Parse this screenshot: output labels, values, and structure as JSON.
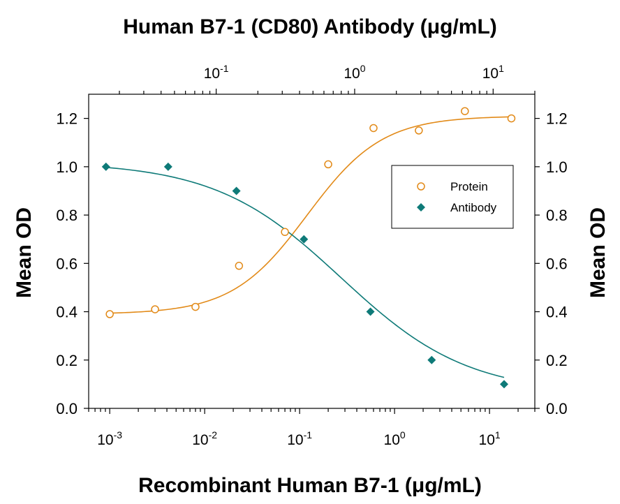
{
  "chart_data": {
    "type": "scatter",
    "title_top": "Human B7-1 (CD80) Antibody (μg/mL)",
    "xlabel_bottom": "Recombinant Human B7-1 (μg/mL)",
    "ylabel_left": "Mean OD",
    "ylabel_right": "Mean OD",
    "x_bottom_scale": "log",
    "x_bottom_range": [
      0.0006,
      30
    ],
    "x_bottom_ticks": [
      {
        "value": 0.001,
        "base": "10",
        "exp": "-3"
      },
      {
        "value": 0.01,
        "base": "10",
        "exp": "-2"
      },
      {
        "value": 0.1,
        "base": "10",
        "exp": "-1"
      },
      {
        "value": 1,
        "base": "10",
        "exp": "0"
      },
      {
        "value": 10,
        "base": "10",
        "exp": "1"
      }
    ],
    "x_top_scale": "log",
    "x_top_range": [
      0.012,
      20
    ],
    "x_top_ticks": [
      {
        "value": 0.1,
        "base": "10",
        "exp": "-1"
      },
      {
        "value": 1,
        "base": "10",
        "exp": "0"
      },
      {
        "value": 10,
        "base": "10",
        "exp": "1"
      }
    ],
    "ylim": [
      0,
      1.3
    ],
    "y_ticks": [
      "0.0",
      "0.2",
      "0.4",
      "0.6",
      "0.8",
      "1.0",
      "1.2"
    ],
    "grid": false,
    "legend_position": "right",
    "series": [
      {
        "name": "Protein",
        "axis": "bottom",
        "marker": "open-circle",
        "color": "#e28a18",
        "x": [
          0.001,
          0.003,
          0.008,
          0.023,
          0.07,
          0.2,
          0.6,
          1.8,
          5.5,
          17
        ],
        "y": [
          0.39,
          0.41,
          0.42,
          0.59,
          0.73,
          1.01,
          1.16,
          1.15,
          1.23,
          1.2
        ],
        "fit": {
          "bottom": 0.39,
          "top": 1.21,
          "ec50": 0.12,
          "hill": 1.1
        }
      },
      {
        "name": "Antibody",
        "axis": "top",
        "marker": "filled-diamond",
        "color": "#0e7a78",
        "x": [
          0.016,
          0.045,
          0.14,
          0.43,
          1.3,
          3.6,
          12
        ],
        "y": [
          1.0,
          1.0,
          0.9,
          0.7,
          0.4,
          0.2,
          0.1
        ],
        "fit": {
          "bottom": 0.06,
          "top": 1.02,
          "ec50": 0.8,
          "hill": -0.95
        }
      }
    ]
  }
}
